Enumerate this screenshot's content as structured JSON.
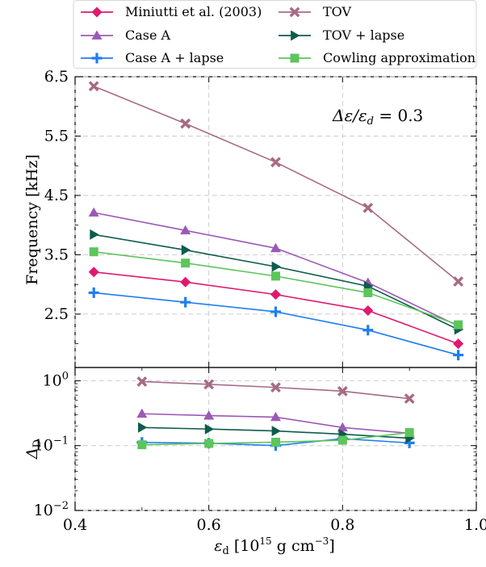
{
  "chart_data": [
    {
      "type": "line",
      "panel": "top",
      "ylabel": "Frequency [kHz]",
      "xlim": [
        0.4,
        1.0
      ],
      "ylim": [
        1.6,
        6.5
      ],
      "yticks": [
        2.5,
        3.5,
        4.5,
        5.5,
        6.5
      ],
      "ytick_labels": [
        "2.5",
        "3.5",
        "4.5",
        "5.5",
        "6.5"
      ],
      "grid": true,
      "annotation": "Δε/ε_d = 0.3",
      "legend_position": "top",
      "series": [
        {
          "name": "Miniutti et al. (2003)",
          "color": "#e0196e",
          "marker": "diamond",
          "x": [
            0.428,
            0.565,
            0.7,
            0.838,
            0.973
          ],
          "y": [
            3.21,
            3.04,
            2.83,
            2.56,
            2.0
          ]
        },
        {
          "name": "Case A",
          "color": "#9b59b6",
          "marker": "triangle-up",
          "x": [
            0.428,
            0.565,
            0.7,
            0.838,
            0.973
          ],
          "y": [
            4.21,
            3.91,
            3.61,
            3.03,
            2.3
          ]
        },
        {
          "name": "Case A + lapse",
          "color": "#1e7ef0",
          "marker": "plus",
          "x": [
            0.428,
            0.565,
            0.7,
            0.838,
            0.973
          ],
          "y": [
            2.86,
            2.7,
            2.54,
            2.23,
            1.81
          ]
        },
        {
          "name": "TOV",
          "color": "#a66b84",
          "marker": "x",
          "x": [
            0.428,
            0.565,
            0.7,
            0.838,
            0.973
          ],
          "y": [
            6.34,
            5.71,
            5.06,
            4.29,
            3.05
          ]
        },
        {
          "name": "TOV + lapse",
          "color": "#0e5c4d",
          "marker": "triangle-right",
          "x": [
            0.428,
            0.565,
            0.7,
            0.838,
            0.973
          ],
          "y": [
            3.84,
            3.58,
            3.3,
            2.97,
            2.24
          ]
        },
        {
          "name": "Cowling approximation",
          "color": "#5cc55c",
          "marker": "square",
          "x": [
            0.428,
            0.565,
            0.7,
            0.838,
            0.973
          ],
          "y": [
            3.55,
            3.36,
            3.14,
            2.86,
            2.32
          ]
        }
      ]
    },
    {
      "type": "line",
      "panel": "bottom",
      "xlabel": "ε_d [10^15 g cm^-3]",
      "ylabel": "Δ_D",
      "xlim": [
        0.4,
        1.0
      ],
      "xticks": [
        0.4,
        0.6,
        0.8,
        1.0
      ],
      "xtick_labels": [
        "0.4",
        "0.6",
        "0.8",
        "1.0"
      ],
      "yscale": "log",
      "ylim": [
        0.01,
        1.6
      ],
      "yticks": [
        0.01,
        0.1,
        1
      ],
      "grid": true,
      "series": [
        {
          "name": "Case A",
          "color": "#9b59b6",
          "marker": "triangle-up",
          "x": [
            0.5,
            0.6,
            0.7,
            0.8,
            0.9
          ],
          "y": [
            0.31,
            0.29,
            0.275,
            0.19,
            0.155
          ]
        },
        {
          "name": "Case A + lapse",
          "color": "#1e7ef0",
          "marker": "plus",
          "x": [
            0.5,
            0.6,
            0.7,
            0.8,
            0.9
          ],
          "y": [
            0.112,
            0.109,
            0.1,
            0.128,
            0.11
          ]
        },
        {
          "name": "TOV",
          "color": "#a66b84",
          "marker": "x",
          "x": [
            0.5,
            0.6,
            0.7,
            0.8,
            0.9
          ],
          "y": [
            0.97,
            0.88,
            0.79,
            0.69,
            0.53
          ]
        },
        {
          "name": "TOV + lapse",
          "color": "#0e5c4d",
          "marker": "triangle-right",
          "x": [
            0.5,
            0.6,
            0.7,
            0.8,
            0.9
          ],
          "y": [
            0.19,
            0.18,
            0.168,
            0.15,
            0.13
          ]
        },
        {
          "name": "Cowling approximation",
          "color": "#5cc55c",
          "marker": "square",
          "x": [
            0.5,
            0.6,
            0.7,
            0.8,
            0.9
          ],
          "y": [
            0.103,
            0.108,
            0.113,
            0.121,
            0.159
          ]
        }
      ]
    }
  ],
  "legend": {
    "entries": [
      {
        "label": "Miniutti et al. (2003)",
        "color": "#e0196e",
        "marker": "diamond"
      },
      {
        "label": "TOV",
        "color": "#a66b84",
        "marker": "x"
      },
      {
        "label": "Case A",
        "color": "#9b59b6",
        "marker": "triangle-up"
      },
      {
        "label": "TOV + lapse",
        "color": "#0e5c4d",
        "marker": "triangle-right"
      },
      {
        "label": "Case A + lapse",
        "color": "#1e7ef0",
        "marker": "plus"
      },
      {
        "label": "Cowling approximation",
        "color": "#5cc55c",
        "marker": "square"
      }
    ]
  }
}
